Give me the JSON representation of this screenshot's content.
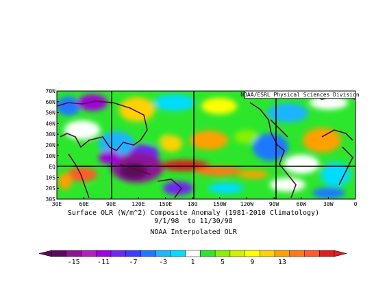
{
  "map": {
    "credit": "NOAA/ESRL Physical Sciences Division",
    "lat_labels": [
      "70N",
      "60N",
      "50N",
      "40N",
      "30N",
      "20N",
      "10N",
      "EQ",
      "10S",
      "20S",
      "30S"
    ],
    "lon_labels": [
      "30E",
      "60E",
      "90E",
      "120E",
      "150E",
      "180",
      "150W",
      "120W",
      "90W",
      "60W",
      "30W",
      "0"
    ]
  },
  "caption": {
    "line1": "Surface OLR (W/m^2) Composite Anomaly (1981-2010 Climatology)",
    "line2": "9/1/98  to 11/30/98",
    "line3": "NOAA Interpolated OLR"
  },
  "colorbar": {
    "tick_labels": [
      "-15",
      "-11",
      "-7",
      "-3",
      "1",
      "5",
      "9",
      "13"
    ],
    "colors": [
      "#5a0a5a",
      "#8c1496",
      "#b41ebe",
      "#a000dc",
      "#6e28f0",
      "#3c3cff",
      "#1e78ff",
      "#1eb4ff",
      "#00dcff",
      "#ffffff",
      "#2ce62c",
      "#88f000",
      "#d2f000",
      "#ffff00",
      "#ffd200",
      "#ffa000",
      "#ff7814",
      "#ff5a28",
      "#dc1e1e"
    ]
  }
}
